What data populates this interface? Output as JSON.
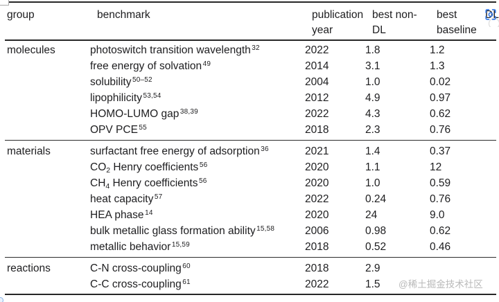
{
  "table": {
    "header": {
      "col_group": "group",
      "col_benchmark": "benchmark",
      "col_year_line1": "publication",
      "col_year_line2": "year",
      "col_nondl_line1": "best non-",
      "col_nondl_line2": "DL",
      "col_baseline_line1": "best",
      "col_baseline_line2": "baseline",
      "col_cut": "DL"
    },
    "groups": [
      {
        "name": "molecules",
        "rows": [
          {
            "benchmark": [
              {
                "text": "photoswitch transition wavelength"
              }
            ],
            "refs": "32",
            "year": "2022",
            "best_non_dl": "1.8",
            "best_baseline": "1.2"
          },
          {
            "benchmark": [
              {
                "text": "free energy of solvation"
              }
            ],
            "refs": "49",
            "year": "2014",
            "best_non_dl": "3.1",
            "best_baseline": "1.3"
          },
          {
            "benchmark": [
              {
                "text": "solubility"
              }
            ],
            "refs": "50–52",
            "year": "2004",
            "best_non_dl": "1.0",
            "best_baseline": "0.02"
          },
          {
            "benchmark": [
              {
                "text": "lipophilicity"
              }
            ],
            "refs": "53,54",
            "year": "2012",
            "best_non_dl": "4.9",
            "best_baseline": "0.97"
          },
          {
            "benchmark": [
              {
                "text": "HOMO-LUMO gap"
              }
            ],
            "refs": "38,39",
            "year": "2022",
            "best_non_dl": "4.3",
            "best_baseline": "0.62"
          },
          {
            "benchmark": [
              {
                "text": "OPV PCE"
              }
            ],
            "refs": "55",
            "year": "2018",
            "best_non_dl": "2.3",
            "best_baseline": "0.76"
          }
        ]
      },
      {
        "name": "materials",
        "rows": [
          {
            "benchmark": [
              {
                "text": "surfactant free energy of adsorption"
              }
            ],
            "refs": "36",
            "year": "2021",
            "best_non_dl": "1.4",
            "best_baseline": "0.37"
          },
          {
            "benchmark": [
              {
                "text": "CO"
              },
              {
                "sub": "2"
              },
              {
                "text": " Henry coefficients"
              }
            ],
            "refs": "56",
            "year": "2020",
            "best_non_dl": "1.1",
            "best_baseline": "12"
          },
          {
            "benchmark": [
              {
                "text": "CH"
              },
              {
                "sub": "4"
              },
              {
                "text": " Henry coefficients"
              }
            ],
            "refs": "56",
            "year": "2020",
            "best_non_dl": "1.0",
            "best_baseline": "0.59"
          },
          {
            "benchmark": [
              {
                "text": "heat capacity"
              }
            ],
            "refs": "57",
            "year": "2022",
            "best_non_dl": "0.24",
            "best_baseline": "0.76"
          },
          {
            "benchmark": [
              {
                "text": "HEA phase"
              }
            ],
            "refs": "14",
            "year": "2020",
            "best_non_dl": "24",
            "best_baseline": "9.0"
          },
          {
            "benchmark": [
              {
                "text": "bulk metallic glass formation ability"
              }
            ],
            "refs": "15,58",
            "year": "2006",
            "best_non_dl": "0.98",
            "best_baseline": "0.62"
          },
          {
            "benchmark": [
              {
                "text": "metallic behavior"
              }
            ],
            "refs": "15,59",
            "year": "2018",
            "best_non_dl": "0.52",
            "best_baseline": "0.46"
          }
        ]
      },
      {
        "name": "reactions",
        "rows": [
          {
            "benchmark": [
              {
                "text": "C-N cross-coupling"
              }
            ],
            "refs": "60",
            "year": "2018",
            "best_non_dl": "2.9",
            "best_baseline": ""
          },
          {
            "benchmark": [
              {
                "text": "C-C cross-coupling"
              }
            ],
            "refs": "61",
            "year": "2022",
            "best_non_dl": "1.5",
            "best_baseline": ""
          }
        ]
      }
    ]
  },
  "watermark": "@稀土掘金技术社区",
  "icons": {
    "scan_icon": "ocr-text-scan-icon"
  },
  "colors": {
    "text": "#1d1d1f",
    "rule": "#262626",
    "watermark": "#b9b9b9",
    "icon_blue": "#3b7de9"
  }
}
